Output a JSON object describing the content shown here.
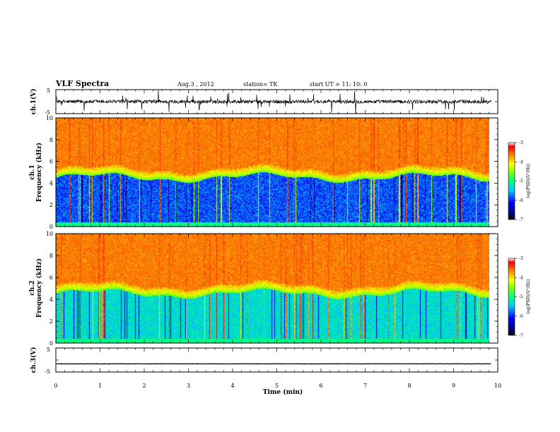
{
  "header": {
    "title": "VLF Spectra",
    "date": "Aug.3 , 2012",
    "station": "station= TK",
    "start": "start UT = 11: 10: 0"
  },
  "chart_data": [
    {
      "type": "line",
      "panel": "ch1-waveform",
      "ylabel": "ch.1(V)",
      "ylim": [
        -5,
        5
      ],
      "yticks": [
        "5",
        "-5"
      ],
      "baseline": 0,
      "noise_amplitude": 1.5,
      "spike_max": 4.5
    },
    {
      "type": "heatmap",
      "panel": "ch1-spectrogram",
      "ylabel_line1": "ch.1",
      "ylabel_line2": "Frequency (kHz)",
      "ylim": [
        0,
        10
      ],
      "yticks": [
        "0",
        "2",
        "4",
        "6",
        "8",
        "10"
      ],
      "colorbar": {
        "label": "log(PSD)(V²/Hz)",
        "range": [
          -7,
          -3
        ],
        "ticks": [
          "-3",
          "-4",
          "-5",
          "-6",
          "-7"
        ]
      },
      "band_boundary_khz": 4.5
    },
    {
      "type": "heatmap",
      "panel": "ch2-spectrogram",
      "ylabel_line1": "ch.2",
      "ylabel_line2": "Frequency (kHz)",
      "ylim": [
        0,
        10
      ],
      "yticks": [
        "0",
        "2",
        "4",
        "6",
        "8",
        "10"
      ],
      "colorbar": {
        "label": "log(PSD)(V²/Hz)",
        "range": [
          -7,
          -3
        ],
        "ticks": [
          "-3",
          "-4",
          "-5",
          "-6",
          "-7"
        ]
      },
      "band_boundary_khz": 4.5
    },
    {
      "type": "line",
      "panel": "ch3-waveform",
      "ylabel": "ch.3(V)",
      "ylim": [
        -5,
        5
      ],
      "yticks": [
        "5",
        "-5"
      ],
      "baseline": -1.6
    }
  ],
  "x_axis": {
    "label": "Time (min)",
    "range": [
      0,
      10
    ],
    "data_end": 9.85,
    "ticks": [
      "0",
      "1",
      "2",
      "3",
      "4",
      "5",
      "6",
      "7",
      "8",
      "9",
      "10"
    ]
  },
  "colors": {
    "jet": [
      "#000080",
      "#0000ff",
      "#00c8ff",
      "#00ff80",
      "#80ff00",
      "#ffff00",
      "#ff8000",
      "#ff0000"
    ]
  }
}
